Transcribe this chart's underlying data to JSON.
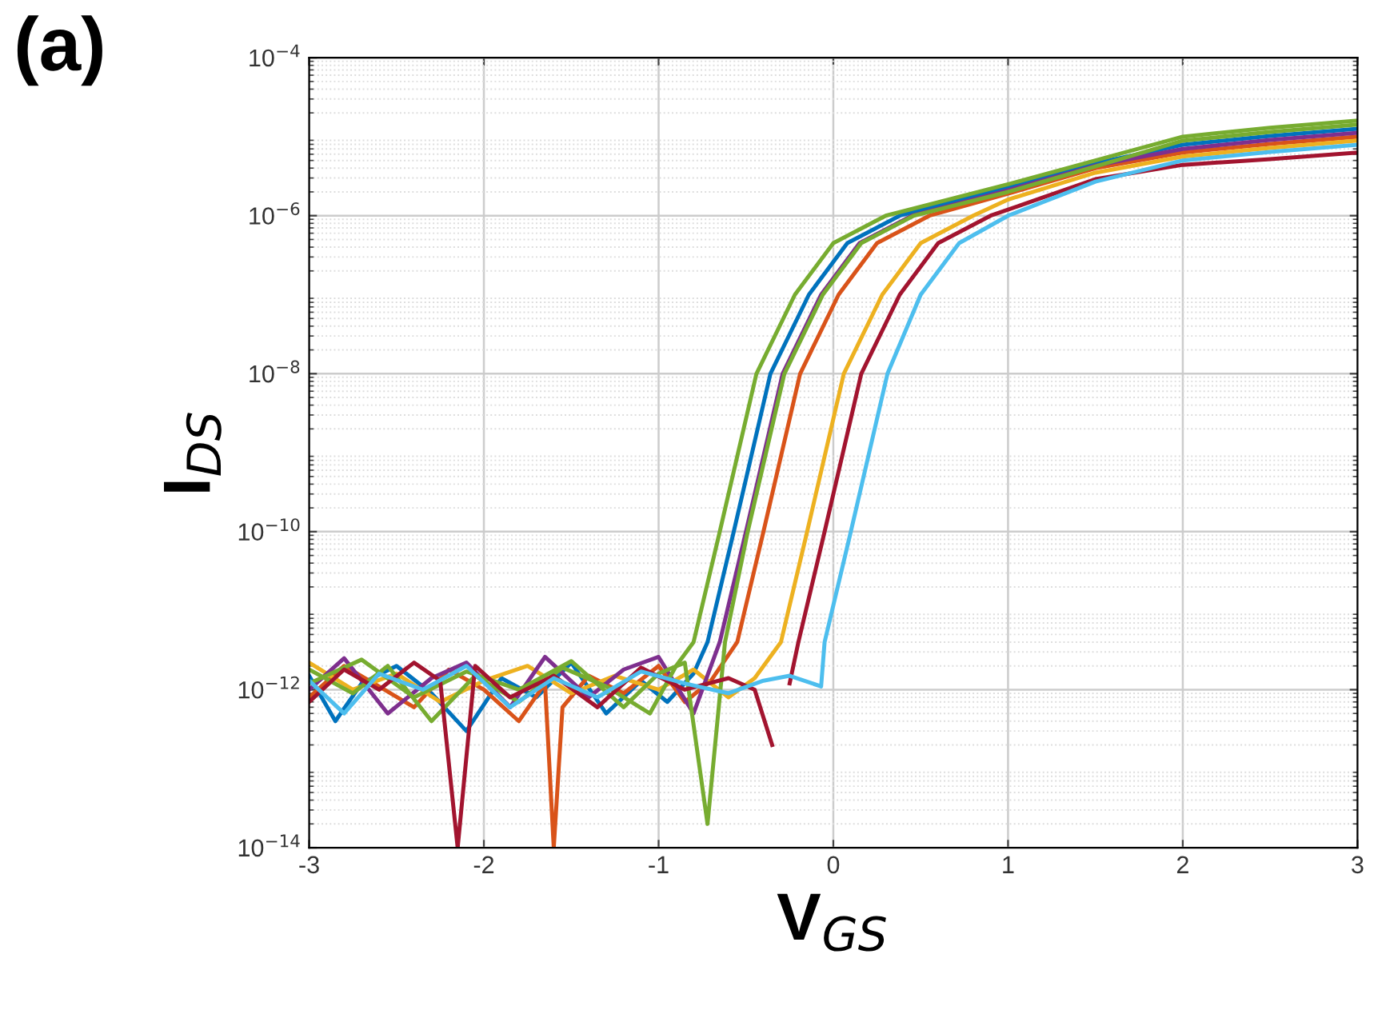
{
  "chart_data": {
    "type": "line",
    "xlabel": "V$_{GS}$",
    "ylabel": "I$_{DS}$",
    "annotations": [
      "(a)"
    ],
    "log": "y",
    "grid": true,
    "marker": "none",
    "line_style": "solid",
    "xlim": [
      -3,
      3
    ],
    "xticks": [
      -3,
      -2,
      -1,
      0,
      1,
      2,
      3
    ],
    "ylim": [
      1e-14,
      0.0001
    ],
    "yticks": [
      {
        "value": 1e-14,
        "label": "10$^{−14}$"
      },
      {
        "value": 1e-12,
        "label": "10$^{−12}$"
      },
      {
        "value": 1e-10,
        "label": "10$^{−10}$"
      },
      {
        "value": 1e-08,
        "label": "10$^{−8}$"
      },
      {
        "value": 1e-06,
        "label": "10$^{−6}$"
      },
      {
        "value": 0.0001,
        "label": "10$^{−4}$"
      }
    ],
    "series": [
      {
        "color": "#0072bd",
        "x": [
          -3,
          -2.85,
          -2.7,
          -2.5,
          -2.3,
          -2.1,
          -1.9,
          -1.7,
          -1.5,
          -1.3,
          -1.1,
          -0.95,
          -0.8,
          -0.72,
          -0.57,
          -0.36,
          -0.14,
          0.08,
          0.38,
          1,
          1.5,
          2,
          2.5,
          3
        ],
        "values": [
          1.5e-12,
          4e-13,
          1.2e-12,
          2e-12,
          9e-13,
          3e-13,
          1.4e-12,
          8e-13,
          2.2e-12,
          5e-13,
          1.3e-12,
          7e-13,
          1.6e-12,
          4e-12,
          1e-10,
          1e-08,
          1e-07,
          4.5e-07,
          1e-06,
          2.3e-06,
          4.6e-06,
          7.9e-06,
          1.02e-05,
          1.26e-05
        ]
      },
      {
        "color": "#d95319",
        "x": [
          -3,
          -2.8,
          -2.6,
          -2.4,
          -2.2,
          -2.0,
          -1.8,
          -1.65,
          -1.6,
          -1.55,
          -1.4,
          -1.2,
          -1.0,
          -0.85,
          -0.7,
          -0.55,
          -0.4,
          -0.19,
          0.03,
          0.25,
          0.55,
          1,
          1.5,
          2,
          2.5,
          3
        ],
        "values": [
          8e-13,
          2e-12,
          1.1e-12,
          6e-13,
          1.8e-12,
          1e-12,
          4e-13,
          1.2e-12,
          1e-14,
          6e-13,
          1.5e-12,
          9e-13,
          2e-12,
          7e-13,
          1.3e-12,
          4e-12,
          1e-10,
          1e-08,
          1e-07,
          4.5e-07,
          1e-06,
          1.9e-06,
          4e-06,
          6.3e-06,
          8.1e-06,
          1e-05
        ]
      },
      {
        "color": "#edb120",
        "x": [
          -3,
          -2.75,
          -2.5,
          -2.25,
          -2.0,
          -1.75,
          -1.5,
          -1.25,
          -1.0,
          -0.8,
          -0.6,
          -0.45,
          -0.3,
          -0.15,
          0.06,
          0.28,
          0.5,
          0.8,
          1,
          1.5,
          2,
          2.5,
          3
        ],
        "values": [
          2.2e-12,
          1e-12,
          1.6e-12,
          7e-13,
          1.3e-12,
          2e-12,
          9e-13,
          1.5e-12,
          1e-12,
          1.8e-12,
          8e-13,
          1.4e-12,
          4e-12,
          1e-10,
          1e-08,
          1e-07,
          4.5e-07,
          1e-06,
          1.6e-06,
          3.5e-06,
          5.6e-06,
          7.2e-06,
          8.9e-06
        ]
      },
      {
        "color": "#7e2f8e",
        "x": [
          -3,
          -2.8,
          -2.55,
          -2.3,
          -2.1,
          -1.85,
          -1.65,
          -1.4,
          -1.2,
          -1.0,
          -0.8,
          -0.65,
          -0.5,
          -0.29,
          -0.07,
          0.15,
          0.45,
          1,
          1.5,
          2,
          2.5,
          3
        ],
        "values": [
          1e-12,
          2.5e-12,
          5e-13,
          1.4e-12,
          2.2e-12,
          6e-13,
          2.6e-12,
          8e-13,
          1.8e-12,
          2.6e-12,
          5e-13,
          4e-12,
          1e-10,
          1e-08,
          1e-07,
          4.5e-07,
          1e-06,
          2.1e-06,
          4.3e-06,
          7e-06,
          9.1e-06,
          1.12e-05
        ]
      },
      {
        "color": "#77ac30",
        "x": [
          -3,
          -2.75,
          -2.55,
          -2.3,
          -2.05,
          -1.8,
          -1.55,
          -1.3,
          -1.05,
          -0.9,
          -0.8,
          -0.65,
          -0.44,
          -0.22,
          0,
          0.3,
          1,
          1.5,
          2,
          2.5,
          3
        ],
        "values": [
          1.8e-12,
          9e-13,
          2e-12,
          4e-13,
          1.5e-12,
          7e-13,
          1.9e-12,
          1.1e-12,
          5e-13,
          2e-12,
          4e-12,
          1e-10,
          1e-08,
          1e-07,
          4.5e-07,
          1e-06,
          2.5e-06,
          5e-06,
          1e-05,
          1.3e-05,
          1.6e-05
        ]
      },
      {
        "color": "#77ac30",
        "x": [
          -3,
          -2.7,
          -2.4,
          -2.1,
          -1.8,
          -1.5,
          -1.2,
          -1.0,
          -0.85,
          -0.72,
          -0.62,
          -0.49,
          -0.28,
          -0.06,
          0.16,
          0.46,
          1,
          1.5,
          2,
          2.5,
          3
        ],
        "values": [
          1.2e-12,
          2.4e-12,
          8e-13,
          1.7e-12,
          1e-12,
          2.3e-12,
          6e-13,
          1.6e-12,
          2.2e-12,
          2e-14,
          4e-12,
          1e-10,
          1e-08,
          1e-07,
          4.5e-07,
          1e-06,
          2e-06,
          4.2e-06,
          8.9e-06,
          1.15e-05,
          1.42e-05
        ]
      },
      {
        "color": "#a2142f",
        "x": [
          -3,
          -2.8,
          -2.6,
          -2.4,
          -2.25,
          -2.15,
          -2.05,
          -1.85,
          -1.6,
          -1.35,
          -1.1,
          -0.85,
          -0.6,
          -0.45,
          -0.35
        ],
        "values": [
          7e-13,
          1.8e-12,
          1e-12,
          2.2e-12,
          1.3e-12,
          1e-14,
          2e-12,
          8e-13,
          1.5e-12,
          6e-13,
          1.9e-12,
          1e-12,
          1.4e-12,
          1e-12,
          2e-13
        ]
      },
      {
        "color": "#a2142f",
        "x": [
          -0.25,
          -0.2,
          -0.05,
          0.16,
          0.38,
          0.6,
          0.9,
          1.2,
          1.5,
          2,
          2.5,
          3
        ],
        "values": [
          1.2e-12,
          4e-12,
          1e-10,
          1e-08,
          1e-07,
          4.5e-07,
          1e-06,
          1.7e-06,
          2.9e-06,
          4.4e-06,
          5.2e-06,
          6.3e-06
        ]
      },
      {
        "color": "#4dbeee",
        "x": [
          -3,
          -2.8,
          -2.6,
          -2.35,
          -2.1,
          -1.85,
          -1.6,
          -1.35,
          -1.1,
          -0.85,
          -0.6,
          -0.4,
          -0.25,
          -0.07,
          -0.05,
          0.1,
          0.31,
          0.5,
          0.72,
          1,
          1.5,
          2,
          2.5,
          3
        ],
        "values": [
          1.3e-12,
          5e-13,
          1.6e-12,
          1e-12,
          2e-12,
          6e-13,
          1.4e-12,
          8e-13,
          1.7e-12,
          1.2e-12,
          9e-13,
          1.3e-12,
          1.5e-12,
          1.1e-12,
          4e-12,
          1e-10,
          1e-08,
          1e-07,
          4.5e-07,
          1e-06,
          2.7e-06,
          5e-06,
          6.4e-06,
          7.9e-06
        ]
      }
    ]
  }
}
